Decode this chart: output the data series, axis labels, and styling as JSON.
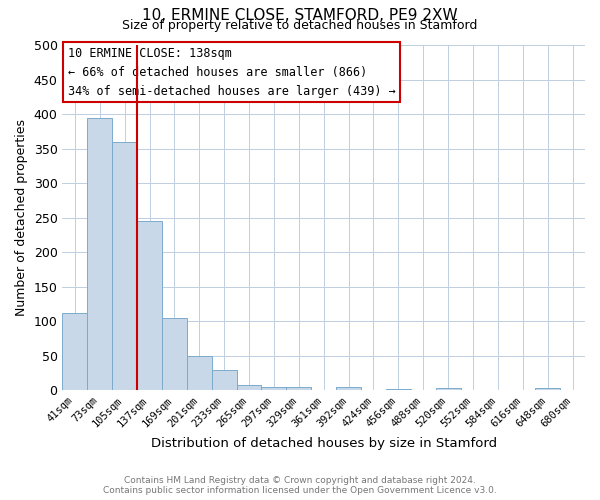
{
  "title": "10, ERMINE CLOSE, STAMFORD, PE9 2XW",
  "subtitle": "Size of property relative to detached houses in Stamford",
  "xlabel": "Distribution of detached houses by size in Stamford",
  "ylabel": "Number of detached properties",
  "bin_labels": [
    "41sqm",
    "73sqm",
    "105sqm",
    "137sqm",
    "169sqm",
    "201sqm",
    "233sqm",
    "265sqm",
    "297sqm",
    "329sqm",
    "361sqm",
    "392sqm",
    "424sqm",
    "456sqm",
    "488sqm",
    "520sqm",
    "552sqm",
    "584sqm",
    "616sqm",
    "648sqm",
    "680sqm"
  ],
  "bar_heights": [
    112,
    394,
    360,
    245,
    105,
    50,
    30,
    8,
    5,
    5,
    0,
    5,
    0,
    2,
    0,
    3,
    0,
    0,
    0,
    3,
    0
  ],
  "bar_color": "#c8d8e8",
  "bar_edge_color": "#7aaacc",
  "ylim": [
    0,
    500
  ],
  "yticks": [
    0,
    50,
    100,
    150,
    200,
    250,
    300,
    350,
    400,
    450,
    500
  ],
  "property_line_color": "#cc0000",
  "property_bar_index": 3,
  "annotation_title": "10 ERMINE CLOSE: 138sqm",
  "annotation_line1": "← 66% of detached houses are smaller (866)",
  "annotation_line2": "34% of semi-detached houses are larger (439) →",
  "annotation_box_color": "#ffffff",
  "annotation_box_edge": "#cc0000",
  "footer_line1": "Contains HM Land Registry data © Crown copyright and database right 2024.",
  "footer_line2": "Contains public sector information licensed under the Open Government Licence v3.0.",
  "background_color": "#ffffff",
  "grid_color": "#c0cfe0"
}
